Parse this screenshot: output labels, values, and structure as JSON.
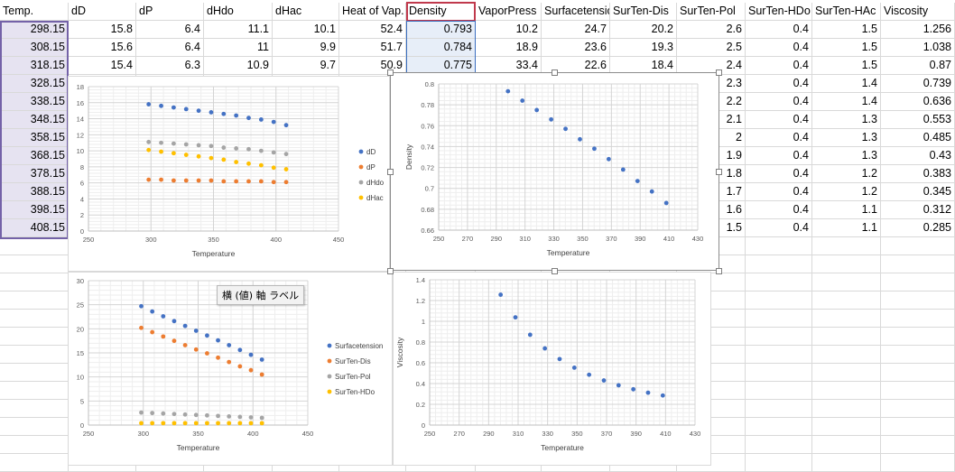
{
  "sheet": {
    "headers": [
      "Temp.",
      "dD",
      "dP",
      "dHdo",
      "dHac",
      "Heat of Vap.",
      "Density",
      "VaporPress",
      "Surfacetension",
      "SurTen-Dis",
      "SurTen-Pol",
      "SurTen-HDo",
      "SurTen-HAc",
      "Viscosity"
    ],
    "rows": [
      [
        "298.15",
        "15.8",
        "6.4",
        "11.1",
        "10.1",
        "52.4",
        "0.793",
        "10.2",
        "24.7",
        "20.2",
        "2.6",
        "0.4",
        "1.5",
        "1.256"
      ],
      [
        "308.15",
        "15.6",
        "6.4",
        "11",
        "9.9",
        "51.7",
        "0.784",
        "18.9",
        "23.6",
        "19.3",
        "2.5",
        "0.4",
        "1.5",
        "1.038"
      ],
      [
        "318.15",
        "15.4",
        "6.3",
        "10.9",
        "9.7",
        "50.9",
        "0.775",
        "33.4",
        "22.6",
        "18.4",
        "2.4",
        "0.4",
        "1.5",
        "0.87"
      ],
      [
        "328.15",
        "",
        "",
        "",
        "",
        "",
        "",
        "",
        "",
        "",
        "2.3",
        "0.4",
        "1.4",
        "0.739"
      ],
      [
        "338.15",
        "",
        "",
        "",
        "",
        "",
        "",
        "",
        "",
        "",
        "2.2",
        "0.4",
        "1.4",
        "0.636"
      ],
      [
        "348.15",
        "",
        "",
        "",
        "",
        "",
        "",
        "",
        "",
        "",
        "2.1",
        "0.4",
        "1.3",
        "0.553"
      ],
      [
        "358.15",
        "",
        "",
        "",
        "",
        "",
        "",
        "",
        "",
        "",
        "2",
        "0.4",
        "1.3",
        "0.485"
      ],
      [
        "368.15",
        "",
        "",
        "",
        "",
        "",
        "",
        "",
        "",
        "",
        "1.9",
        "0.4",
        "1.3",
        "0.43"
      ],
      [
        "378.15",
        "",
        "",
        "",
        "",
        "",
        "",
        "",
        "",
        "",
        "1.8",
        "0.4",
        "1.2",
        "0.383"
      ],
      [
        "388.15",
        "",
        "",
        "",
        "",
        "",
        "",
        "",
        "",
        "",
        "1.7",
        "0.4",
        "1.2",
        "0.345"
      ],
      [
        "398.15",
        "",
        "",
        "",
        "",
        "",
        "",
        "",
        "",
        "",
        "1.6",
        "0.4",
        "1.1",
        "0.312"
      ],
      [
        "408.15",
        "",
        "",
        "",
        "",
        "",
        "",
        "",
        "",
        "",
        "1.5",
        "0.4",
        "1.1",
        "0.285"
      ]
    ]
  },
  "tooltip": "横 (値) 軸 ラベル",
  "colors": {
    "blue": "#4472c4",
    "orange": "#ed7d31",
    "gray": "#a5a5a5",
    "yellow": "#ffc000"
  },
  "chart_data": [
    {
      "type": "scatter",
      "xlabel": "Temperature",
      "ylabel": "",
      "xlim": [
        250,
        450
      ],
      "xticks": [
        250,
        300,
        350,
        400,
        450
      ],
      "ylim": [
        0,
        18
      ],
      "yticks": [
        0,
        2,
        4,
        6,
        8,
        10,
        12,
        14,
        16,
        18
      ],
      "legend": "right",
      "x": [
        298.15,
        308.15,
        318.15,
        328.15,
        338.15,
        348.15,
        358.15,
        368.15,
        378.15,
        388.15,
        398.15,
        408.15
      ],
      "series": [
        {
          "name": "dD",
          "color": "#4472c4",
          "values": [
            15.8,
            15.6,
            15.4,
            15.2,
            15.0,
            14.8,
            14.6,
            14.4,
            14.1,
            13.9,
            13.6,
            13.2
          ]
        },
        {
          "name": "dP",
          "color": "#ed7d31",
          "values": [
            6.4,
            6.4,
            6.3,
            6.3,
            6.3,
            6.3,
            6.2,
            6.2,
            6.2,
            6.2,
            6.1,
            6.1
          ]
        },
        {
          "name": "dHdo",
          "color": "#a5a5a5",
          "values": [
            11.1,
            11.0,
            10.9,
            10.8,
            10.7,
            10.6,
            10.4,
            10.3,
            10.2,
            10.0,
            9.8,
            9.6
          ]
        },
        {
          "name": "dHac",
          "color": "#ffc000",
          "values": [
            10.1,
            9.9,
            9.7,
            9.5,
            9.3,
            9.1,
            8.9,
            8.6,
            8.4,
            8.2,
            7.9,
            7.7
          ]
        }
      ]
    },
    {
      "type": "scatter",
      "xlabel": "Temperature",
      "ylabel": "Density",
      "xlim": [
        250,
        430
      ],
      "xticks": [
        250,
        270,
        290,
        310,
        330,
        350,
        370,
        390,
        410,
        430
      ],
      "ylim": [
        0.66,
        0.8
      ],
      "yticks": [
        0.66,
        0.68,
        0.7,
        0.72,
        0.74,
        0.76,
        0.78,
        0.8
      ],
      "x": [
        298.15,
        308.15,
        318.15,
        328.15,
        338.15,
        348.15,
        358.15,
        368.15,
        378.15,
        388.15,
        398.15,
        408.15
      ],
      "series": [
        {
          "name": "Density",
          "color": "#4472c4",
          "values": [
            0.793,
            0.784,
            0.775,
            0.766,
            0.757,
            0.747,
            0.738,
            0.728,
            0.718,
            0.707,
            0.697,
            0.686
          ]
        }
      ]
    },
    {
      "type": "scatter",
      "xlabel": "Temperature",
      "ylabel": "",
      "xlim": [
        250,
        450
      ],
      "xticks": [
        250,
        300,
        350,
        400,
        450
      ],
      "ylim": [
        0,
        30
      ],
      "yticks": [
        0,
        5,
        10,
        15,
        20,
        25,
        30
      ],
      "legend": "right",
      "x": [
        298.15,
        308.15,
        318.15,
        328.15,
        338.15,
        348.15,
        358.15,
        368.15,
        378.15,
        388.15,
        398.15,
        408.15
      ],
      "series": [
        {
          "name": "Surfacetension",
          "color": "#4472c4",
          "values": [
            24.7,
            23.6,
            22.6,
            21.6,
            20.6,
            19.6,
            18.6,
            17.6,
            16.6,
            15.6,
            14.6,
            13.6
          ]
        },
        {
          "name": "SurTen-Dis",
          "color": "#ed7d31",
          "values": [
            20.2,
            19.3,
            18.4,
            17.5,
            16.6,
            15.7,
            14.9,
            14.0,
            13.1,
            12.2,
            11.4,
            10.5
          ]
        },
        {
          "name": "SurTen-Pol",
          "color": "#a5a5a5",
          "values": [
            2.6,
            2.5,
            2.4,
            2.3,
            2.2,
            2.1,
            2.0,
            1.9,
            1.8,
            1.7,
            1.6,
            1.5
          ]
        },
        {
          "name": "SurTen-HDo",
          "color": "#ffc000",
          "values": [
            0.4,
            0.4,
            0.4,
            0.4,
            0.4,
            0.4,
            0.4,
            0.4,
            0.4,
            0.4,
            0.4,
            0.4
          ]
        }
      ]
    },
    {
      "type": "scatter",
      "xlabel": "Temperature",
      "ylabel": "Viscosity",
      "xlim": [
        250,
        430
      ],
      "xticks": [
        250,
        270,
        290,
        310,
        330,
        350,
        370,
        390,
        410,
        430
      ],
      "ylim": [
        0,
        1.4
      ],
      "yticks": [
        0,
        0.2,
        0.4,
        0.6,
        0.8,
        1,
        1.2,
        1.4
      ],
      "x": [
        298.15,
        308.15,
        318.15,
        328.15,
        338.15,
        348.15,
        358.15,
        368.15,
        378.15,
        388.15,
        398.15,
        408.15
      ],
      "series": [
        {
          "name": "Viscosity",
          "color": "#4472c4",
          "values": [
            1.256,
            1.038,
            0.87,
            0.739,
            0.636,
            0.553,
            0.485,
            0.43,
            0.383,
            0.345,
            0.312,
            0.285
          ]
        }
      ]
    }
  ]
}
